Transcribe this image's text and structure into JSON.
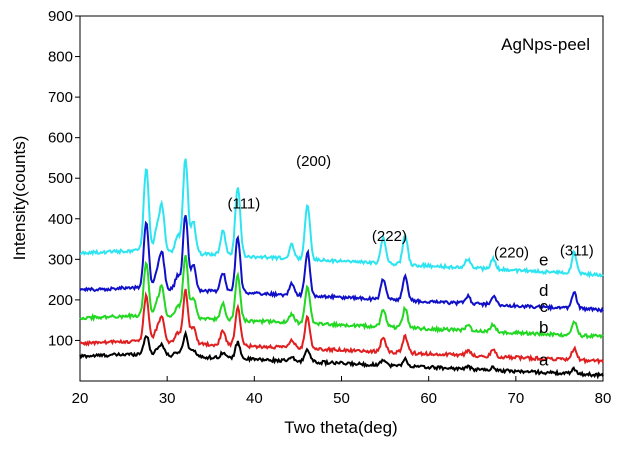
{
  "chart_data": {
    "type": "line",
    "title": "AgNps-peel",
    "xlabel": "Two theta(deg)",
    "ylabel": "Intensity(counts)",
    "xlim": [
      20,
      80
    ],
    "ylim": [
      0,
      900
    ],
    "xticks": [
      20,
      30,
      40,
      50,
      60,
      70,
      80
    ],
    "yticks": [
      100,
      200,
      300,
      400,
      500,
      600,
      700,
      800,
      900
    ],
    "grid": false,
    "series": [
      {
        "name": "a",
        "color": "#000000",
        "offset": 0,
        "scale": 1.0
      },
      {
        "name": "b",
        "color": "#e02020",
        "offset": 35,
        "scale": 2.4
      },
      {
        "name": "c",
        "color": "#22d822",
        "offset": 95,
        "scale": 2.8
      },
      {
        "name": "d",
        "color": "#1010c8",
        "offset": 160,
        "scale": 3.4
      },
      {
        "name": "e",
        "color": "#2ee4f0",
        "offset": 245,
        "scale": 4.3
      }
    ],
    "base_peaks": [
      {
        "x": 27.6,
        "y": 48
      },
      {
        "x": 28.8,
        "y": 12
      },
      {
        "x": 29.4,
        "y": 26
      },
      {
        "x": 31.2,
        "y": 10
      },
      {
        "x": 32.1,
        "y": 55
      },
      {
        "x": 33.0,
        "y": 18
      },
      {
        "x": 36.4,
        "y": 14
      },
      {
        "x": 38.1,
        "y": 40
      },
      {
        "x": 44.3,
        "y": 8
      },
      {
        "x": 46.1,
        "y": 32
      },
      {
        "x": 54.8,
        "y": 15
      },
      {
        "x": 57.3,
        "y": 17
      },
      {
        "x": 64.5,
        "y": 5
      },
      {
        "x": 67.4,
        "y": 6
      },
      {
        "x": 76.7,
        "y": 12
      }
    ],
    "annotations": [
      {
        "text": "(111)",
        "x": 38.8,
        "y": 425
      },
      {
        "text": "(200)",
        "x": 46.8,
        "y": 530
      },
      {
        "text": "(222)",
        "x": 55.5,
        "y": 345
      },
      {
        "text": "(220)",
        "x": 69.5,
        "y": 305
      },
      {
        "text": "(311)",
        "x": 77.0,
        "y": 310
      }
    ],
    "series_labels": [
      {
        "text": "e",
        "x": 73.2,
        "y": 285
      },
      {
        "text": "d",
        "x": 73.2,
        "y": 210
      },
      {
        "text": "c",
        "x": 73.2,
        "y": 170
      },
      {
        "text": "b",
        "x": 73.2,
        "y": 118
      },
      {
        "text": "a",
        "x": 73.2,
        "y": 38
      }
    ]
  }
}
